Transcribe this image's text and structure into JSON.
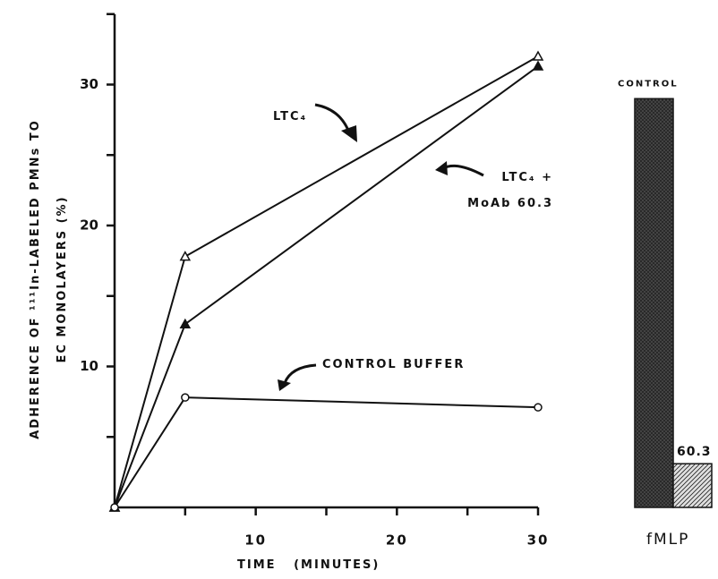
{
  "chart_data": [
    {
      "type": "line",
      "x_label": "TIME   (MINUTES)",
      "y_label": "ADHERENCE OF ¹¹¹In-LABELED PMNs TO\nEC MONOLAYERS (%)",
      "x": [
        0,
        5,
        30
      ],
      "series": [
        {
          "name": "LTC₄",
          "color": "#111111",
          "marker": "triangle-open",
          "values": [
            0,
            17.8,
            32
          ]
        },
        {
          "name": "LTC₄ +\nMoAb 60.3",
          "color": "#111111",
          "marker": "triangle-filled",
          "values": [
            0,
            13,
            31.3
          ]
        },
        {
          "name": "CONTROL BUFFER",
          "color": "#111111",
          "marker": "circle-open",
          "values": [
            0,
            7.8,
            7.1
          ]
        }
      ],
      "xlim": [
        0,
        30
      ],
      "ylim": [
        0,
        35
      ],
      "xticks": [
        10,
        20,
        30
      ],
      "xticks_minor": [
        5,
        15,
        25
      ],
      "yticks": [
        10,
        20,
        30
      ],
      "yticks_minor": [
        5,
        15,
        25,
        35
      ]
    },
    {
      "type": "bar",
      "categories": [
        "CONTROL",
        "60.3"
      ],
      "values": [
        29,
        3.1
      ],
      "x_label": "fMLP",
      "colors": [
        "#4a4a4a",
        "#e0e0e0"
      ],
      "ylim": [
        0,
        35
      ]
    }
  ]
}
